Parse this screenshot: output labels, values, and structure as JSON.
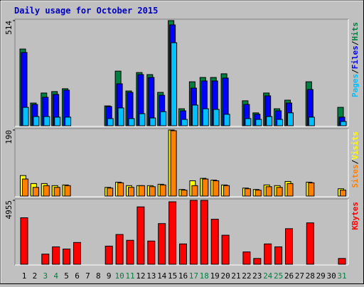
{
  "chart_data": [
    {
      "type": "bar",
      "title": "Daily usage for October 2015",
      "ylim": [
        0,
        514
      ],
      "yticks": [
        514
      ],
      "legend_separator": "/",
      "series": [
        {
          "name": "Hits",
          "color": "#008040",
          "values": [
            375,
            111,
            160,
            167,
            181,
            0,
            0,
            0,
            97,
            267,
            170,
            260,
            250,
            163,
            514,
            83,
            215,
            236,
            236,
            254,
            0,
            122,
            63,
            160,
            83,
            125,
            0,
            215,
            0,
            0,
            90
          ]
        },
        {
          "name": "Files",
          "color": "#0000ff",
          "values": [
            358,
            104,
            139,
            153,
            174,
            0,
            0,
            0,
            94,
            205,
            163,
            250,
            236,
            149,
            493,
            73,
            184,
            219,
            219,
            233,
            0,
            104,
            56,
            146,
            73,
            111,
            0,
            177,
            0,
            0,
            42
          ]
        },
        {
          "name": "Pages",
          "color": "#00c0ff",
          "values": [
            90,
            45,
            45,
            42,
            42,
            0,
            0,
            0,
            35,
            87,
            35,
            59,
            38,
            69,
            406,
            31,
            101,
            83,
            80,
            56,
            0,
            35,
            31,
            45,
            31,
            63,
            0,
            42,
            0,
            0,
            21
          ]
        }
      ]
    },
    {
      "type": "bar",
      "ylim": [
        0,
        190
      ],
      "yticks": [
        190
      ],
      "legend_separator": "/",
      "series": [
        {
          "name": "Visits",
          "color": "#ffff00",
          "values": [
            59,
            36,
            36,
            30,
            32,
            0,
            0,
            0,
            25,
            40,
            30,
            30,
            30,
            34,
            190,
            19,
            44,
            51,
            46,
            32,
            0,
            23,
            19,
            32,
            30,
            42,
            0,
            40,
            0,
            0,
            21
          ]
        },
        {
          "name": "Sites",
          "color": "#ff8000",
          "values": [
            49,
            25,
            30,
            25,
            30,
            0,
            0,
            0,
            23,
            38,
            25,
            30,
            27,
            32,
            188,
            17,
            30,
            49,
            44,
            30,
            0,
            21,
            17,
            27,
            25,
            36,
            0,
            38,
            0,
            0,
            17
          ]
        }
      ]
    },
    {
      "type": "bar",
      "ylim": [
        0,
        4955
      ],
      "yticks": [
        4955
      ],
      "categories": [
        "1",
        "2",
        "3",
        "4",
        "5",
        "6",
        "7",
        "8",
        "9",
        "10",
        "11",
        "12",
        "13",
        "14",
        "15",
        "16",
        "17",
        "18",
        "19",
        "20",
        "21",
        "22",
        "23",
        "24",
        "25",
        "26",
        "27",
        "28",
        "29",
        "30",
        "31"
      ],
      "category_colors": [
        "#000000",
        "#000000",
        "#008040",
        "#008040",
        "#000000",
        "#000000",
        "#000000",
        "#000000",
        "#000000",
        "#008040",
        "#008040",
        "#000000",
        "#000000",
        "#000000",
        "#000000",
        "#000000",
        "#008040",
        "#008040",
        "#000000",
        "#000000",
        "#000000",
        "#000000",
        "#000000",
        "#008040",
        "#008040",
        "#000000",
        "#000000",
        "#000000",
        "#000000",
        "#000000",
        "#008040"
      ],
      "series": [
        {
          "name": "KBytes",
          "color": "#ff0000",
          "values": [
            3604,
            0,
            788,
            1351,
            1182,
            1689,
            0,
            0,
            1408,
            2309,
            1858,
            4448,
            1802,
            3153,
            4843,
            1577,
            4955,
            4955,
            3491,
            2252,
            0,
            957,
            450,
            1577,
            1351,
            2759,
            0,
            3209,
            0,
            0,
            450
          ]
        }
      ]
    }
  ]
}
